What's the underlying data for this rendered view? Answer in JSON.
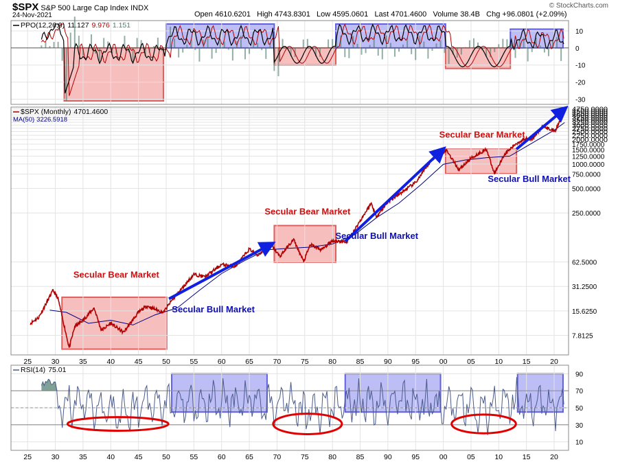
{
  "header": {
    "symbol": "$SPX",
    "name": "S&P 500 Large Cap Index",
    "exchange": "INDX",
    "date": "24-Nov-2021",
    "open_label": "Open",
    "open": "4610.6201",
    "high_label": "High",
    "high": "4743.8301",
    "low_label": "Low",
    "low": "4595.0601",
    "last_label": "Last",
    "last": "4701.4600",
    "volume_label": "Volume",
    "volume": "38.4B",
    "chg_label": "Chg",
    "chg": "+96.0801 (+2.09%)",
    "brand": "© StockCharts.com"
  },
  "colors": {
    "price": "#b00000",
    "ma": "#000080",
    "bear_box_fill": "#f4a8a8",
    "bear_box_stroke": "#e06060",
    "bull_box_fill": "#a8a8f4",
    "bull_box_stroke": "#6060e0",
    "arrow": "#1020e0",
    "bear_text": "#d01010",
    "bull_text": "#1010b0",
    "ellipse": "#e00000",
    "rsi_line": "#4a5a8a",
    "rsi_fill": "#4a7a6a",
    "grid": "#e3e3e3"
  },
  "chart_data": [
    {
      "panel": "ppo",
      "type": "line",
      "label": "PPO(12,26,9)",
      "value_ppo": "11.127",
      "value_signal": "9.976",
      "value_hist": "1.151",
      "yticks": [
        "10",
        "0",
        "-10",
        "-20",
        "-30"
      ],
      "ytick_values": [
        10,
        0,
        -10,
        -20,
        -30
      ],
      "ylim": [
        -33,
        16
      ],
      "bear_boxes": [
        [
          1931.6,
          1949.5,
          -31,
          0
        ],
        [
          1969.5,
          1980.6,
          -10,
          0
        ],
        [
          2000.4,
          2012.1,
          -12,
          0
        ]
      ],
      "bull_boxes": [
        [
          1950,
          1969.5,
          0,
          14
        ],
        [
          1980.6,
          2000.4,
          0,
          14
        ],
        [
          2012.1,
          2021.6,
          0,
          11
        ]
      ]
    },
    {
      "panel": "price",
      "type": "line",
      "label": "$SPX (Monthly)",
      "value": "4701.4600",
      "ma_label": "MA(50)",
      "ma_value": "3226.5918",
      "scale": "log",
      "ylim": [
        4.5,
        5000
      ],
      "yticks": [
        "4750.0000",
        "4500.0000",
        "4250.0000",
        "4000.0000",
        "3750.0000",
        "3500.0000",
        "3250.0000",
        "3000.0000",
        "2750.0000",
        "2500.0000",
        "2250.0000",
        "2000.0000",
        "1750.0000",
        "1500.0000",
        "1250.0000",
        "1000.0000",
        "750.0000",
        "500.0000",
        "250.0000",
        "62.5000",
        "31.2500",
        "15.6250",
        "7.8125"
      ],
      "ytick_values": [
        4750,
        4500,
        4250,
        4000,
        3750,
        3500,
        3250,
        3000,
        2750,
        2500,
        2250,
        2000,
        1750,
        1500,
        1250,
        1000,
        750,
        500,
        250,
        62.5,
        31.25,
        15.625,
        7.8125
      ],
      "series": [
        {
          "name": "$SPX",
          "x": [
            1925.5,
            1927,
            1929.6,
            1930.5,
            1932.5,
            1933.5,
            1935,
            1937,
            1938.3,
            1940,
            1942.3,
            1945,
            1946.5,
            1949.5,
            1951,
            1955,
            1957,
            1960,
            1962.5,
            1965,
            1966.5,
            1968.9,
            1970.5,
            1973,
            1974.8,
            1976,
            1978,
            1980,
            1982.6,
            1987,
            1987.9,
            1990,
            1995,
            1998,
            2000.6,
            2002.8,
            2005,
            2007.8,
            2009.2,
            2011,
            2013,
            2015,
            2016,
            2018,
            2020.2,
            2021.9
          ],
          "values": [
            11,
            13,
            28,
            22,
            5.5,
            10,
            12,
            17,
            9,
            11,
            8.5,
            15,
            18,
            15,
            21,
            44,
            41,
            58,
            55,
            90,
            75,
            103,
            73,
            118,
            63,
            102,
            88,
            114,
            110,
            330,
            225,
            340,
            590,
            1150,
            1480,
            850,
            1180,
            1520,
            760,
            1300,
            1750,
            2100,
            1990,
            2900,
            2530,
            4700
          ]
        },
        {
          "name": "MA(50)",
          "x": [
            1929,
            1932,
            1936,
            1940,
            1944,
            1948,
            1952,
            1956,
            1960,
            1964,
            1968,
            1972,
            1976,
            1980,
            1984,
            1988,
            1992,
            1996,
            2000,
            2004,
            2008,
            2012,
            2016,
            2020,
            2021.9
          ],
          "values": [
            16,
            15,
            11,
            12,
            10.5,
            14,
            17,
            28,
            45,
            64,
            88,
            92,
            95,
            104,
            135,
            220,
            330,
            560,
            990,
            1120,
            1200,
            1250,
            1800,
            2600,
            3226.6
          ]
        }
      ],
      "bear_boxes": [
        [
          1931.2,
          1950.1,
          5.3,
          23
        ],
        [
          1969.5,
          1980.6,
          62,
          175
        ],
        [
          2000.4,
          2013.2,
          760,
          1520
        ]
      ],
      "arrows": [
        [
          1950.5,
          22,
          1968.9,
          103
        ],
        [
          1982.3,
          112,
          1999.8,
          1480
        ],
        [
          2013.2,
          1520,
          2021.8,
          4700
        ]
      ],
      "annotations": [
        {
          "text": "Secular Bear Market",
          "x": 1941,
          "y": 40,
          "kind": "bear"
        },
        {
          "text": "Secular Bull Market",
          "x": 1958.5,
          "y": 15,
          "kind": "bull"
        },
        {
          "text": "Secular Bear Market",
          "x": 1975.5,
          "y": 240,
          "kind": "bear"
        },
        {
          "text": "Secular Bull Market",
          "x": 1988,
          "y": 120,
          "kind": "bull"
        },
        {
          "text": "Secular Bear Market",
          "x": 2007,
          "y": 2100,
          "kind": "bear"
        },
        {
          "text": "Secular Bull Market",
          "x": 2015.5,
          "y": 600,
          "kind": "bull"
        }
      ]
    },
    {
      "panel": "rsi",
      "type": "line",
      "label": "RSI(14)",
      "value": "75.01",
      "yticks": [
        "90",
        "70",
        "50",
        "30",
        "10"
      ],
      "ytick_values": [
        90,
        70,
        50,
        30,
        10
      ],
      "ylim": [
        0,
        100
      ],
      "bull_boxes": [
        [
          1951,
          1968.2,
          45,
          90
        ],
        [
          1982.3,
          1999.5,
          45,
          90
        ],
        [
          2013.4,
          2021.6,
          45,
          90
        ]
      ],
      "oversold_ellipses": [
        [
          1941.3,
          31,
          9.1,
          8
        ],
        [
          1975.5,
          31,
          6.2,
          12
        ],
        [
          2007.3,
          31,
          5.8,
          11
        ]
      ]
    }
  ],
  "x_axis": {
    "ticks": [
      "25",
      "30",
      "35",
      "40",
      "45",
      "50",
      "55",
      "60",
      "65",
      "70",
      "75",
      "80",
      "85",
      "90",
      "95",
      "00",
      "05",
      "10",
      "15",
      "20"
    ],
    "tick_years": [
      1925,
      1930,
      1935,
      1940,
      1945,
      1950,
      1955,
      1960,
      1965,
      1970,
      1975,
      1980,
      1985,
      1990,
      1995,
      2000,
      2005,
      2010,
      2015,
      2020
    ]
  }
}
